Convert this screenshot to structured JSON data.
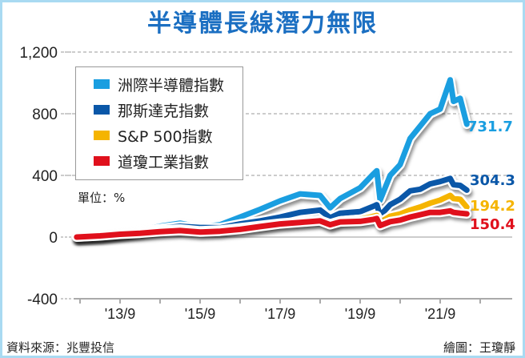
{
  "chart_data": {
    "type": "line",
    "title": "半導體長線潛力無限",
    "unit_label": "單位：%",
    "ylim": [
      -400,
      1200
    ],
    "yticks": [
      1200,
      800,
      400,
      0,
      -400
    ],
    "ytick_labels": [
      "1,200",
      "800",
      "400",
      "0",
      "-400"
    ],
    "xtick_labels": [
      "'13/9",
      "'15/9",
      "'17/9",
      "'19/9",
      "'21/9"
    ],
    "grid": "horizontal dashed",
    "legend_position": "top-left",
    "x": [
      "2012-08",
      "2013-03",
      "2013-09",
      "2014-03",
      "2014-09",
      "2015-03",
      "2015-09",
      "2016-03",
      "2016-09",
      "2017-03",
      "2017-09",
      "2018-03",
      "2018-09",
      "2018-12",
      "2019-03",
      "2019-09",
      "2020-01",
      "2020-02",
      "2020-03",
      "2020-06",
      "2020-09",
      "2020-12",
      "2021-03",
      "2021-06",
      "2021-09",
      "2021-12",
      "2022-01",
      "2022-03",
      "2022-05"
    ],
    "series": [
      {
        "name": "洲際半導體指數",
        "color": "#1a9ee0",
        "end_label": "731.7",
        "values": [
          0,
          10,
          25,
          45,
          70,
          90,
          65,
          80,
          130,
          180,
          235,
          280,
          270,
          190,
          250,
          320,
          410,
          430,
          240,
          400,
          470,
          640,
          720,
          800,
          830,
          1020,
          880,
          900,
          731.7
        ]
      },
      {
        "name": "那斯達克指數",
        "color": "#0a57a8",
        "end_label": "304.3",
        "values": [
          0,
          8,
          22,
          38,
          55,
          70,
          62,
          60,
          85,
          105,
          130,
          160,
          175,
          125,
          155,
          165,
          200,
          210,
          140,
          210,
          245,
          300,
          310,
          345,
          360,
          380,
          340,
          335,
          304.3
        ]
      },
      {
        "name": "S&P 500指數",
        "color": "#f5b400",
        "end_label": "194.2",
        "values": [
          0,
          10,
          22,
          32,
          45,
          52,
          40,
          45,
          60,
          75,
          90,
          100,
          110,
          85,
          105,
          115,
          135,
          140,
          95,
          135,
          150,
          175,
          195,
          220,
          240,
          270,
          250,
          245,
          194.2
        ]
      },
      {
        "name": "道瓊工業指數",
        "color": "#e0101c",
        "end_label": "150.4",
        "values": [
          0,
          8,
          18,
          25,
          35,
          42,
          32,
          38,
          50,
          68,
          85,
          95,
          105,
          80,
          98,
          102,
          115,
          120,
          75,
          100,
          110,
          130,
          145,
          160,
          160,
          170,
          160,
          155,
          150.4
        ]
      }
    ]
  },
  "footer": {
    "source": "資料來源：兆豐投信",
    "credit": "繪圖：王瓊靜"
  }
}
